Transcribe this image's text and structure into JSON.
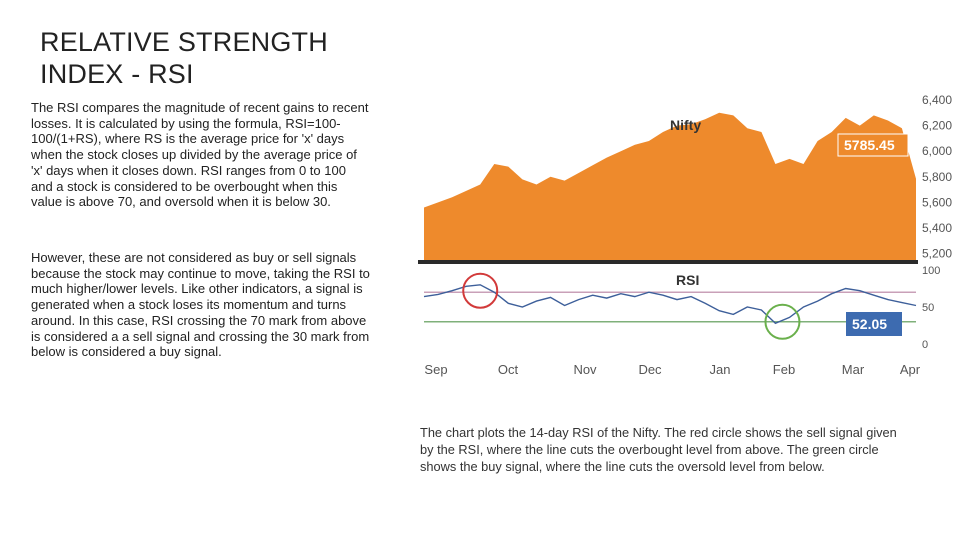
{
  "slide": {
    "title_line1": "RELATIVE STRENGTH",
    "title_line2": "INDEX - RSI",
    "paragraph1": "The RSI compares the magnitude of recent gains to recent losses. It is calculated by using the formula, RSI=100-100/(1+RS), where RS is the average price for 'x' days when the stock closes up divided by the average price of 'x' days when it closes down. RSI ranges from 0 to 100 and a stock is considered to be overbought when this value is above 70, and oversold when it is below 30.",
    "paragraph2": "However, these are not considered as buy or sell signals because the stock may continue to move, taking the RSI to much higher/lower levels. Like other indicators, a signal is generated when a stock loses its momentum and turns around. In this case, RSI crossing the 70 mark from above is considered a a sell signal and crossing the 30 mark from below is considered a buy signal.",
    "caption_line1": "The chart plots the 14-day RSI of the Nifty. The red circle shows the sell signal given",
    "caption_line2": "by the RSI, where the line cuts the overbought level from above. The green circle",
    "caption_line3": "shows the buy signal, where the line cuts the oversold level from below."
  },
  "colors": {
    "nifty_fill": "#ee8a2c",
    "nifty_label_bg": "#ee8a2c",
    "rsi_line": "#3d5f9a",
    "overbought_line": "#c9a0b8",
    "oversold_line": "#7fb07a",
    "rsi_label_bg": "#3d6bb0",
    "sell_circle": "#d23a3a",
    "buy_circle": "#6ab04c",
    "divider": "#2a2a2a"
  },
  "chart_data": [
    {
      "type": "area",
      "title": "Nifty",
      "x_ticks": [
        "Sep",
        "Oct",
        "Nov",
        "Dec",
        "Jan",
        "Feb",
        "Mar",
        "Apr"
      ],
      "y_ticks": [
        "6,400",
        "6,200",
        "6,000",
        "5,800",
        "5,600",
        "5,400",
        "5,200"
      ],
      "ylim": [
        5150,
        6400
      ],
      "last_value_label": "5785.45",
      "series": [
        {
          "x": [
            0,
            0.2,
            0.4,
            0.6,
            0.8,
            1,
            1.2,
            1.4,
            1.6,
            1.8,
            2,
            2.2,
            2.4,
            2.6,
            2.8,
            3,
            3.2,
            3.4,
            3.6,
            3.8,
            4,
            4.2,
            4.4,
            4.6,
            4.8,
            5,
            5.2,
            5.4,
            5.6,
            5.8,
            6,
            6.2,
            6.4,
            6.6,
            6.8,
            7
          ],
          "values": [
            5560,
            5600,
            5640,
            5690,
            5740,
            5900,
            5880,
            5780,
            5740,
            5800,
            5770,
            5830,
            5890,
            5950,
            6000,
            6050,
            6080,
            6150,
            6200,
            6210,
            6250,
            6300,
            6280,
            6180,
            6150,
            5900,
            5940,
            5900,
            6080,
            6150,
            6260,
            6200,
            6280,
            6240,
            6180,
            5785
          ]
        }
      ]
    },
    {
      "type": "line",
      "title": "RSI",
      "x_ticks": [
        "Sep",
        "Oct",
        "Nov",
        "Dec",
        "Jan",
        "Feb",
        "Mar",
        "Apr"
      ],
      "y_ticks": [
        "100",
        "50",
        "0"
      ],
      "ylim": [
        0,
        100
      ],
      "overbought": 70,
      "oversold": 30,
      "last_value_label": "52.05",
      "series": [
        {
          "x": [
            0,
            0.2,
            0.4,
            0.6,
            0.8,
            1,
            1.2,
            1.4,
            1.6,
            1.8,
            2,
            2.2,
            2.4,
            2.6,
            2.8,
            3,
            3.2,
            3.4,
            3.6,
            3.8,
            4,
            4.2,
            4.4,
            4.6,
            4.8,
            5,
            5.2,
            5.4,
            5.6,
            5.8,
            6,
            6.2,
            6.4,
            6.6,
            6.8,
            7
          ],
          "values": [
            64,
            67,
            72,
            78,
            80,
            70,
            55,
            50,
            58,
            63,
            52,
            60,
            66,
            62,
            68,
            64,
            70,
            66,
            60,
            64,
            55,
            45,
            40,
            50,
            46,
            28,
            36,
            50,
            58,
            68,
            75,
            72,
            66,
            60,
            56,
            52
          ]
        }
      ]
    }
  ]
}
